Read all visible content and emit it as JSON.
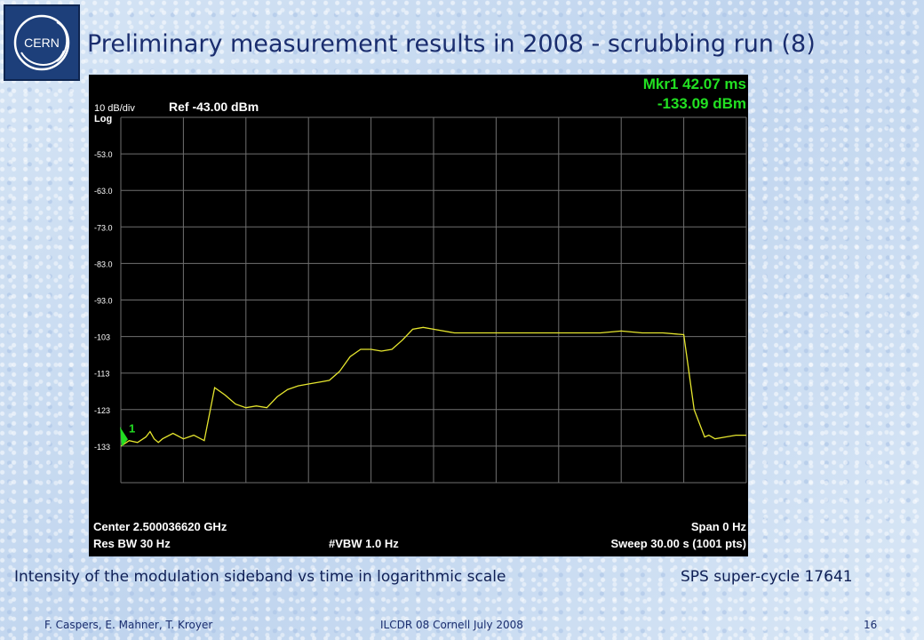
{
  "slide": {
    "title": "Preliminary measurement results in 2008 - scrubbing run (8)",
    "logo_text": "CERN",
    "caption_left": "Intensity of the modulation sideband vs time in logarithmic scale",
    "caption_right": "SPS super-cycle 17641",
    "footer_left": "F. Caspers, E. Mahner, T. Kroyer",
    "footer_center": "ILCDR 08 Cornell July 2008",
    "page_number": "16"
  },
  "analyzer": {
    "scale": "10 dB/div",
    "log": "Log",
    "ref": "Ref -43.00 dBm",
    "marker_line1": "Mkr1 42.07 ms",
    "marker_line2": "-133.09 dBm",
    "marker_label": "1",
    "center": "Center 2.500036620 GHz",
    "span": "Span 0 Hz",
    "res_bw": "Res BW 30 Hz",
    "vbw": "#VBW 1.0 Hz",
    "sweep": "Sweep  30.00 s (1001 pts)"
  },
  "chart_data": {
    "type": "line",
    "x_unit": "s",
    "xlim": [
      0,
      30
    ],
    "ylim": [
      -143,
      -43
    ],
    "ytick_labels": [
      "-53.0",
      "-63.0",
      "-73.0",
      "-83.0",
      "-93.0",
      "-103",
      "-113",
      "-123",
      "-133"
    ],
    "grid": true,
    "trace_color": "#e6e62e",
    "text_color": "#ffffff",
    "marker_color": "#22dd22",
    "marker": {
      "x": 0.042,
      "y": -133.09
    },
    "series": [
      {
        "x": [
          0.0,
          0.4,
          0.8,
          1.2,
          1.4,
          1.6,
          1.8,
          2.0,
          2.5,
          3.0,
          3.5,
          4.0,
          4.5,
          5.0,
          5.5,
          6.0,
          6.5,
          7.0,
          7.5,
          8.0,
          8.5,
          9.0,
          9.5,
          10.0,
          10.5,
          11.0,
          11.5,
          12.0,
          12.5,
          13.0,
          13.5,
          14.0,
          14.5,
          15.0,
          16.0,
          17.0,
          18.0,
          19.0,
          20.0,
          21.0,
          22.0,
          23.0,
          24.0,
          25.0,
          26.0,
          27.0,
          27.5,
          28.0,
          28.2,
          28.5,
          29.0,
          29.5,
          30.0
        ],
        "y": [
          -133.0,
          -131.5,
          -132.0,
          -130.5,
          -129.0,
          -131.0,
          -132.0,
          -131.0,
          -129.5,
          -131.0,
          -130.0,
          -131.5,
          -117.0,
          -119.0,
          -121.5,
          -122.5,
          -122.0,
          -122.5,
          -119.5,
          -117.5,
          -116.5,
          -116.0,
          -115.5,
          -115.0,
          -112.5,
          -108.5,
          -106.5,
          -106.5,
          -107.0,
          -106.5,
          -104.0,
          -101.0,
          -100.5,
          -101.0,
          -102.0,
          -102.0,
          -102.0,
          -102.0,
          -102.0,
          -102.0,
          -102.0,
          -102.0,
          -101.5,
          -102.0,
          -102.0,
          -102.5,
          -123.0,
          -130.5,
          -130.0,
          -131.0,
          -130.5,
          -130.0,
          -130.0
        ]
      }
    ]
  }
}
